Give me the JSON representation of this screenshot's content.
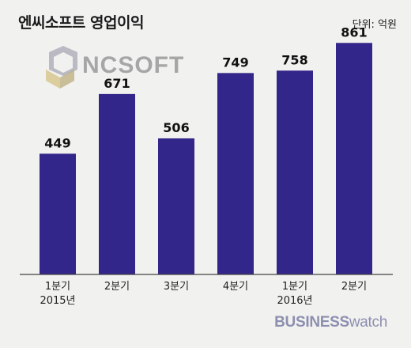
{
  "title": "엔씨소프트 영업이익",
  "unit": "단위: 억원",
  "logo_text": "NCSOFT",
  "brand": {
    "bold": "BUSINESS",
    "light": "watch"
  },
  "colors": {
    "bar": "#33268a",
    "background": "#f1f1ef",
    "axis": "#444444",
    "logo": "#a6a6a6"
  },
  "chart_data": {
    "type": "bar",
    "title": "엔씨소프트 영업이익",
    "unit": "단위: 억원",
    "categories": [
      "1분기",
      "2분기",
      "3분기",
      "4분기",
      "1분기",
      "2분기"
    ],
    "year_labels": [
      "2015년",
      "",
      "",
      "",
      "2016년",
      ""
    ],
    "values": [
      449,
      671,
      506,
      749,
      758,
      861
    ],
    "ylim": [
      0,
      900
    ],
    "grid": false,
    "legend": "none"
  }
}
